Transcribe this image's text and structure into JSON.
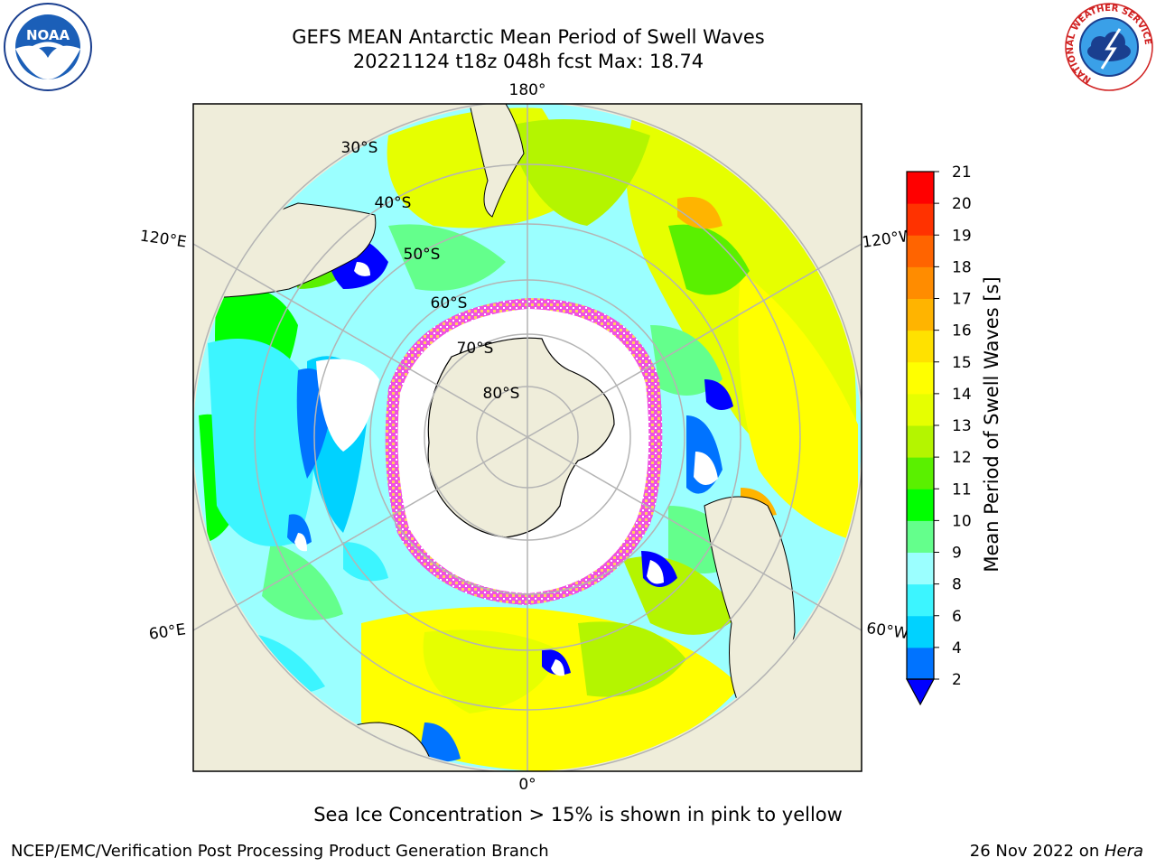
{
  "header": {
    "title_line1": "GEFS MEAN Antarctic Mean Period of Swell Waves",
    "title_line2": "20221124 t18z 048h fcst   Max: 18.74"
  },
  "logos": {
    "noaa_text": "NOAA",
    "nws_text": "NATIONAL WEATHER SERVICE"
  },
  "map": {
    "lon_labels": {
      "top": "180°",
      "bottom": "0°",
      "upper_left": "120°E",
      "lower_left": "60°E",
      "upper_right": "120°W",
      "lower_right": "60°W"
    },
    "lat_labels": [
      "30°S",
      "40°S",
      "50°S",
      "60°S",
      "70°S",
      "80°S"
    ],
    "colors": {
      "land": "#efedda",
      "ice": "#ffffff",
      "ice_edge_pink": "#f050e0",
      "ice_edge_yellow": "#ffd060",
      "grid": "#b4b4b4"
    }
  },
  "colorbar": {
    "label": "Mean Period of Swell Waves [s]",
    "ticks": [
      "2",
      "4",
      "6",
      "8",
      "9",
      "10",
      "11",
      "12",
      "13",
      "14",
      "15",
      "16",
      "17",
      "18",
      "19",
      "20",
      "21"
    ],
    "colors": [
      "#0000ff",
      "#0073ff",
      "#00d2ff",
      "#3cf5ff",
      "#9bffff",
      "#64ff8c",
      "#00ff00",
      "#5af000",
      "#b4f500",
      "#e6ff00",
      "#ffff00",
      "#ffe100",
      "#ffb400",
      "#ff8c00",
      "#ff6400",
      "#ff3200",
      "#ff0000"
    ]
  },
  "footer": {
    "note": "Sea Ice Concentration > 15% is shown in pink to yellow",
    "credit": "NCEP/EMC/Verification Post Processing Product Generation Branch",
    "date_text": "26 Nov 2022 on ",
    "date_host": "Hera"
  }
}
